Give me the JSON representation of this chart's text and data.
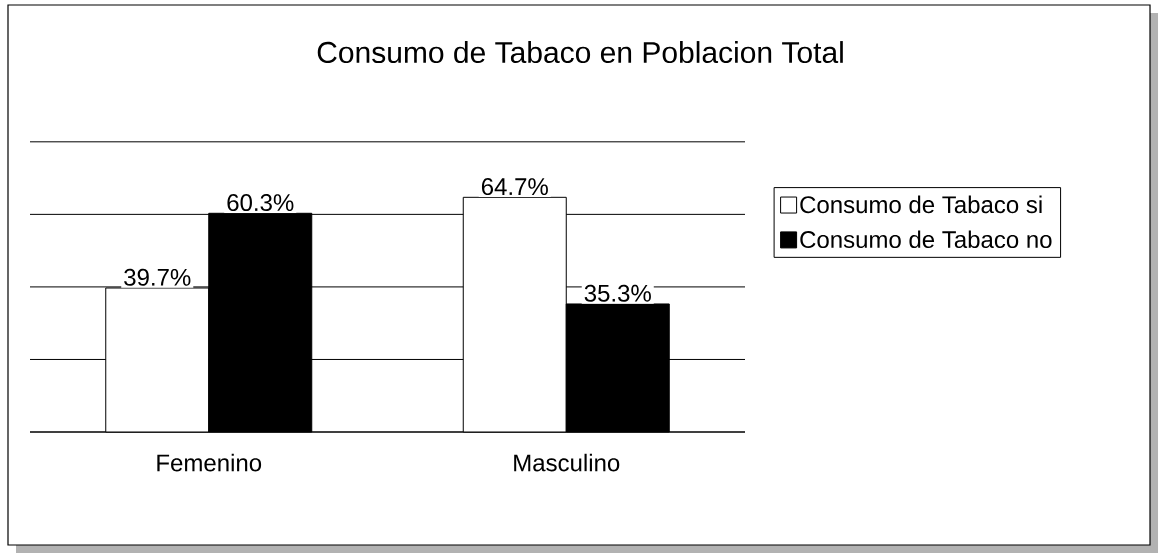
{
  "chart_data": {
    "type": "bar",
    "title": "Consumo de Tabaco en Poblacion Total",
    "categories": [
      "Femenino",
      "Masculino"
    ],
    "series": [
      {
        "name": "Consumo de Tabaco si",
        "color": "#ffffff",
        "values": [
          39.7,
          64.7
        ],
        "value_labels": [
          "39.7%",
          "64.7%"
        ]
      },
      {
        "name": "Consumo de Tabaco no",
        "color": "#000000",
        "values": [
          60.3,
          35.3
        ],
        "value_labels": [
          "60.3%",
          "35.3%"
        ]
      }
    ],
    "grid": "y",
    "legend": "right"
  }
}
